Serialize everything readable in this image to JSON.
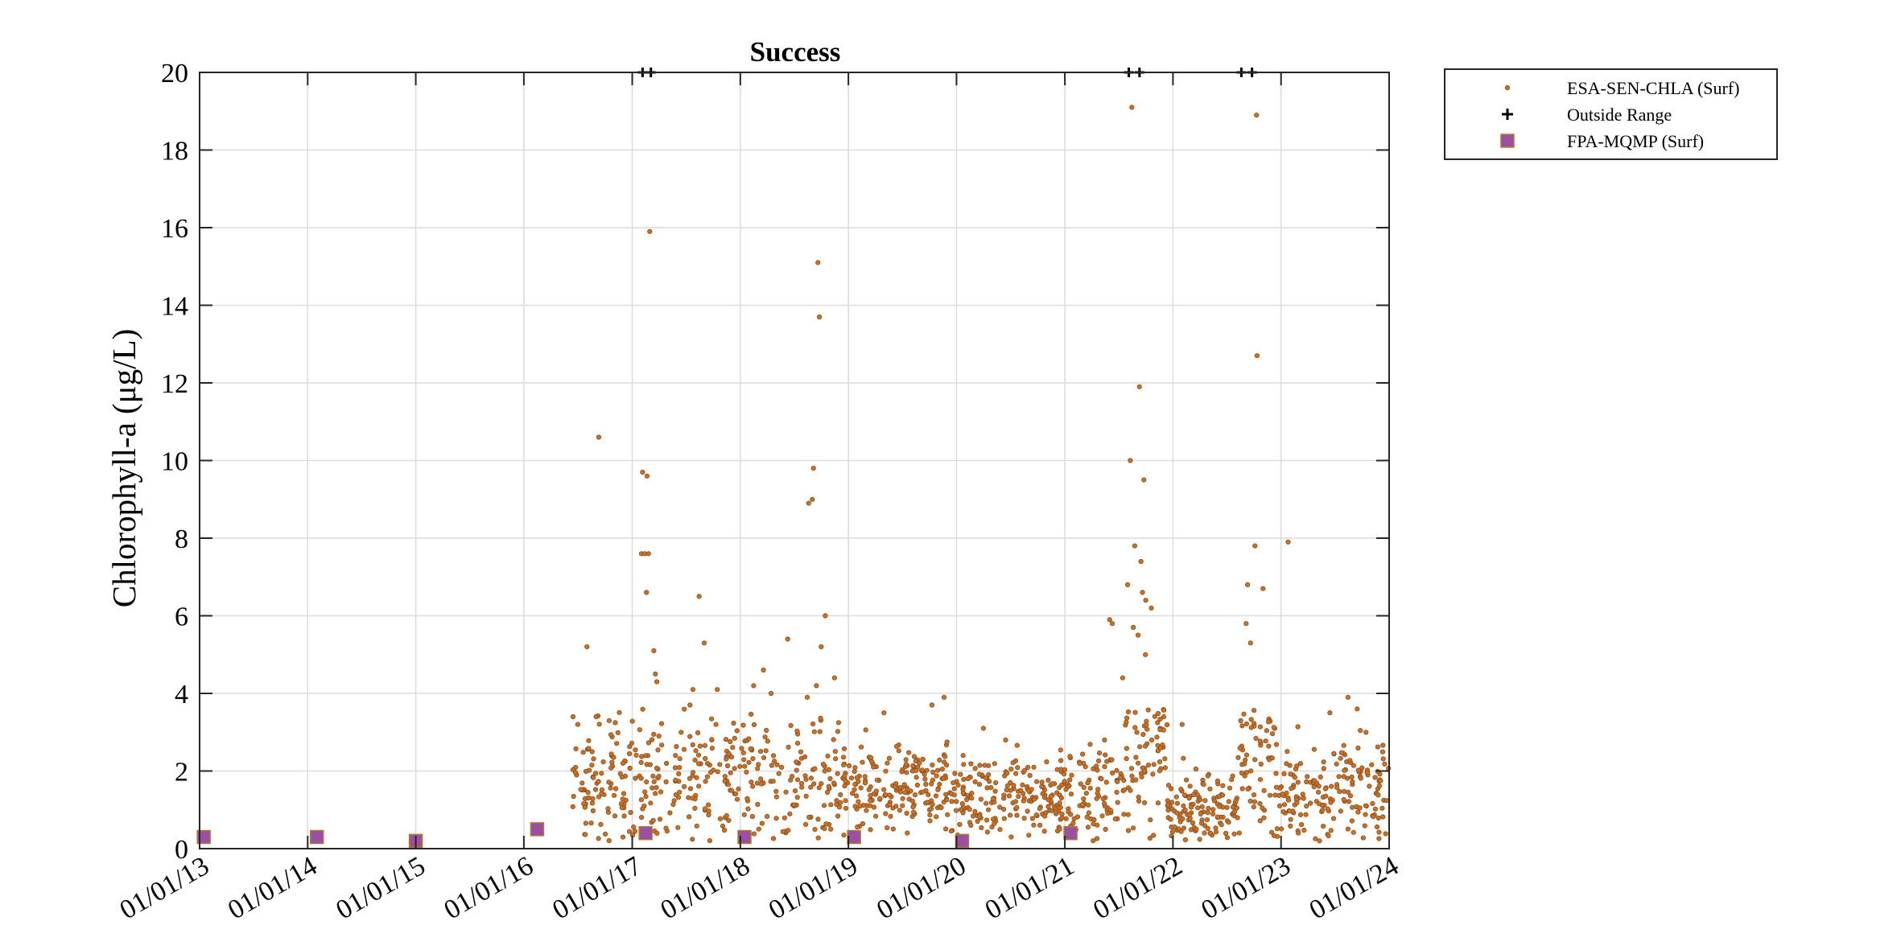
{
  "chart_data": {
    "type": "scatter",
    "title": "Success",
    "xlabel": "",
    "ylabel": "Chlorophyll-a (μg/L)",
    "xlim": [
      "2013-01-01",
      "2024-01-01"
    ],
    "ylim": [
      0,
      20
    ],
    "grid": true,
    "legend_position": "outside-top-right",
    "x_tick_labels": [
      "01/01/13",
      "01/01/14",
      "01/01/15",
      "01/01/16",
      "01/01/17",
      "01/01/18",
      "01/01/19",
      "01/01/20",
      "01/01/21",
      "01/01/22",
      "01/01/23",
      "01/01/24"
    ],
    "y_ticks": [
      0,
      2,
      4,
      6,
      8,
      10,
      12,
      14,
      16,
      18,
      20
    ],
    "legend": [
      {
        "label": "ESA-SEN-CHLA (Surf)",
        "marker": "dot",
        "color": "#c8732a"
      },
      {
        "label": "Outside Range",
        "marker": "plus",
        "color": "#000000"
      },
      {
        "label": "FPA-MQMP (Surf)",
        "marker": "square",
        "color": "#9b4fa3"
      }
    ],
    "series": [
      {
        "name": "ESA-SEN-CHLA (Surf)",
        "marker": "dot",
        "color": "#c8732a",
        "points": [
          {
            "x": "2016-08-01",
            "y": 5.2
          },
          {
            "x": "2016-09-10",
            "y": 10.6
          },
          {
            "x": "2017-02-05",
            "y": 9.7
          },
          {
            "x": "2017-02-20",
            "y": 9.6
          },
          {
            "x": "2017-02-01",
            "y": 7.6
          },
          {
            "x": "2017-02-12",
            "y": 7.6
          },
          {
            "x": "2017-02-25",
            "y": 7.6
          },
          {
            "x": "2017-02-18",
            "y": 6.6
          },
          {
            "x": "2017-03-01",
            "y": 15.9
          },
          {
            "x": "2017-03-15",
            "y": 5.1
          },
          {
            "x": "2017-03-20",
            "y": 4.5
          },
          {
            "x": "2017-03-25",
            "y": 4.3
          },
          {
            "x": "2017-08-15",
            "y": 6.5
          },
          {
            "x": "2017-09-01",
            "y": 5.3
          },
          {
            "x": "2018-09-20",
            "y": 15.1
          },
          {
            "x": "2018-09-25",
            "y": 13.7
          },
          {
            "x": "2018-09-05",
            "y": 9.8
          },
          {
            "x": "2018-08-20",
            "y": 8.9
          },
          {
            "x": "2018-09-01",
            "y": 9.0
          },
          {
            "x": "2018-10-15",
            "y": 6.0
          },
          {
            "x": "2018-10-01",
            "y": 5.2
          },
          {
            "x": "2018-06-10",
            "y": 5.4
          },
          {
            "x": "2021-06-01",
            "y": 5.9
          },
          {
            "x": "2021-06-10",
            "y": 5.8
          },
          {
            "x": "2021-08-01",
            "y": 6.8
          },
          {
            "x": "2021-07-15",
            "y": 4.4
          },
          {
            "x": "2021-08-15",
            "y": 19.1
          },
          {
            "x": "2021-08-10",
            "y": 10.0
          },
          {
            "x": "2021-09-10",
            "y": 11.9
          },
          {
            "x": "2021-09-25",
            "y": 9.5
          },
          {
            "x": "2021-08-25",
            "y": 7.8
          },
          {
            "x": "2021-09-15",
            "y": 7.4
          },
          {
            "x": "2021-09-20",
            "y": 6.6
          },
          {
            "x": "2021-10-01",
            "y": 6.4
          },
          {
            "x": "2021-10-20",
            "y": 6.2
          },
          {
            "x": "2021-08-20",
            "y": 5.7
          },
          {
            "x": "2021-09-05",
            "y": 5.5
          },
          {
            "x": "2021-09-30",
            "y": 5.0
          },
          {
            "x": "2022-09-10",
            "y": 6.8
          },
          {
            "x": "2022-09-05",
            "y": 5.8
          },
          {
            "x": "2022-10-10",
            "y": 18.9
          },
          {
            "x": "2022-10-12",
            "y": 12.7
          },
          {
            "x": "2022-10-05",
            "y": 7.8
          },
          {
            "x": "2022-11-01",
            "y": 6.7
          },
          {
            "x": "2022-09-20",
            "y": 5.3
          },
          {
            "x": "2023-01-25",
            "y": 7.9
          },
          {
            "x": "2016-06-15",
            "y": 3.4
          },
          {
            "x": "2016-07-01",
            "y": 3.2
          },
          {
            "x": "2016-09-01",
            "y": 3.4
          },
          {
            "x": "2016-10-15",
            "y": 3.3
          },
          {
            "x": "2016-12-01",
            "y": 2.2
          },
          {
            "x": "2017-04-01",
            "y": 2.9
          },
          {
            "x": "2017-06-15",
            "y": 3.0
          },
          {
            "x": "2017-07-15",
            "y": 3.7
          },
          {
            "x": "2017-07-25",
            "y": 4.1
          },
          {
            "x": "2017-10-15",
            "y": 4.1
          },
          {
            "x": "2018-02-15",
            "y": 4.2
          },
          {
            "x": "2018-03-20",
            "y": 4.6
          },
          {
            "x": "2018-04-15",
            "y": 4.0
          },
          {
            "x": "2018-08-15",
            "y": 3.9
          },
          {
            "x": "2018-09-15",
            "y": 4.2
          },
          {
            "x": "2018-11-15",
            "y": 4.4
          },
          {
            "x": "2019-05-01",
            "y": 3.5
          },
          {
            "x": "2019-10-10",
            "y": 3.7
          },
          {
            "x": "2019-11-20",
            "y": 3.9
          },
          {
            "x": "2020-04-01",
            "y": 3.1
          },
          {
            "x": "2020-06-15",
            "y": 2.8
          },
          {
            "x": "2021-05-15",
            "y": 2.8
          },
          {
            "x": "2021-12-01",
            "y": 3.4
          },
          {
            "x": "2022-02-01",
            "y": 3.2
          },
          {
            "x": "2023-06-15",
            "y": 3.5
          },
          {
            "x": "2023-08-15",
            "y": 3.9
          },
          {
            "x": "2023-09-15",
            "y": 3.6
          }
        ],
        "bulk": "about 1,200 further observations scattered between 0.2 and 3.5 µg/L from mid-2016 to the end of 2023, densest between 0.5 and 2.5 µg/L"
      },
      {
        "name": "Outside Range",
        "marker": "plus",
        "color": "#000000",
        "points": [
          {
            "x": "2017-02-05",
            "y": 20
          },
          {
            "x": "2017-03-05",
            "y": 20
          },
          {
            "x": "2021-08-05",
            "y": 20
          },
          {
            "x": "2021-09-10",
            "y": 20
          },
          {
            "x": "2022-08-20",
            "y": 20
          },
          {
            "x": "2022-09-25",
            "y": 20
          }
        ]
      },
      {
        "name": "FPA-MQMP (Surf)",
        "marker": "square",
        "color": "#9b4fa3",
        "points": [
          {
            "x": "2013-01-15",
            "y": 0.3
          },
          {
            "x": "2014-02-01",
            "y": 0.3
          },
          {
            "x": "2015-01-01",
            "y": 0.2
          },
          {
            "x": "2016-02-15",
            "y": 0.5
          },
          {
            "x": "2017-02-15",
            "y": 0.4
          },
          {
            "x": "2018-01-15",
            "y": 0.3
          },
          {
            "x": "2019-01-20",
            "y": 0.3
          },
          {
            "x": "2020-01-20",
            "y": 0.2
          },
          {
            "x": "2021-01-20",
            "y": 0.4
          }
        ]
      }
    ]
  }
}
